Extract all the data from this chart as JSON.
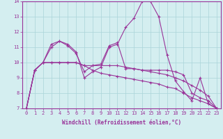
{
  "xlabel": "Windchill (Refroidissement éolien,°C)",
  "x_values": [
    0,
    1,
    2,
    3,
    4,
    5,
    6,
    7,
    8,
    9,
    10,
    11,
    12,
    13,
    14,
    15,
    16,
    17,
    18,
    19,
    20,
    21,
    22,
    23
  ],
  "lines": [
    [
      7.0,
      9.5,
      10.0,
      11.2,
      11.4,
      11.2,
      10.7,
      9.0,
      9.4,
      9.7,
      11.0,
      11.2,
      12.3,
      12.9,
      14.0,
      14.0,
      13.0,
      10.5,
      8.8,
      8.1,
      7.5,
      9.0,
      7.3,
      7.0
    ],
    [
      7.0,
      9.5,
      10.0,
      11.0,
      11.4,
      11.1,
      10.6,
      9.4,
      9.8,
      9.9,
      11.1,
      11.3,
      9.6,
      9.6,
      9.5,
      9.5,
      9.5,
      9.5,
      9.4,
      9.2,
      8.0,
      7.7,
      7.5,
      7.0
    ],
    [
      7.0,
      9.5,
      10.0,
      10.0,
      10.0,
      10.0,
      10.0,
      9.8,
      9.8,
      9.8,
      9.8,
      9.8,
      9.7,
      9.6,
      9.5,
      9.4,
      9.3,
      9.2,
      9.0,
      8.8,
      8.5,
      8.2,
      7.8,
      7.0
    ],
    [
      7.0,
      9.5,
      10.0,
      10.0,
      10.0,
      10.0,
      10.0,
      9.8,
      9.5,
      9.3,
      9.2,
      9.1,
      9.0,
      8.9,
      8.8,
      8.7,
      8.6,
      8.4,
      8.3,
      8.0,
      7.7,
      7.5,
      7.3,
      7.0
    ]
  ],
  "line_color": "#993399",
  "marker": "+",
  "markersize": 3,
  "linewidth": 0.8,
  "bg_color": "#d4eef0",
  "grid_color": "#aad4d8",
  "ylim": [
    7,
    14
  ],
  "yticks": [
    7,
    8,
    9,
    10,
    11,
    12,
    13,
    14
  ],
  "xticks": [
    0,
    1,
    2,
    3,
    4,
    5,
    6,
    7,
    8,
    9,
    10,
    11,
    12,
    13,
    14,
    15,
    16,
    17,
    18,
    19,
    20,
    21,
    22,
    23
  ],
  "xlabel_fontsize": 5.5,
  "tick_fontsize": 5.0,
  "label_color": "#993399"
}
